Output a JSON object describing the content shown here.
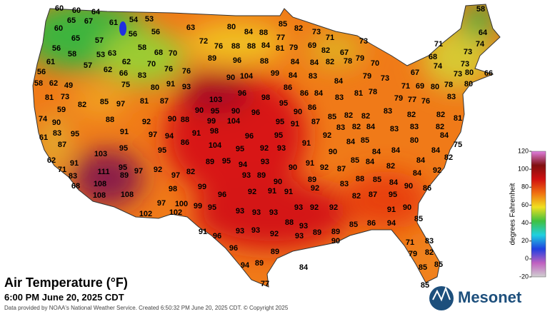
{
  "title": "Air Temperature (°F)",
  "subtitle": "6:00 PM June 20, 2025 CDT",
  "credit": "Data provided by NOAA's National Weather Service. Created 6:50:32 PM June 20, 2025 CDT. © Copyright 2025",
  "logo_text": "Mesonet",
  "colorbar": {
    "label": "degrees Fahrenheit",
    "lim": [
      -20,
      120
    ],
    "ticks": [
      -20,
      0,
      20,
      40,
      60,
      80,
      100,
      120
    ],
    "colors": [
      "#d0d0d0",
      "#c060c0",
      "#2040e0",
      "#20d0e0",
      "#40c040",
      "#f0e020",
      "#f07010",
      "#d01010",
      "#801010",
      "#e080e0"
    ]
  },
  "station_values": [
    60,
    60,
    64,
    58,
    65,
    67,
    61,
    54,
    53,
    60,
    56,
    56,
    63,
    80,
    84,
    88,
    85,
    82,
    73,
    77,
    71,
    73,
    64,
    74,
    71,
    65,
    57,
    58,
    72,
    76,
    88,
    88,
    84,
    81,
    79,
    69,
    82,
    67,
    73,
    68,
    58,
    56,
    53,
    63,
    68,
    70,
    61,
    57,
    62,
    70,
    89,
    96,
    88,
    84,
    84,
    82,
    78,
    79,
    70,
    74,
    73,
    80,
    66,
    56,
    62,
    66,
    76,
    76,
    67,
    73,
    58,
    62,
    49,
    83,
    90,
    104,
    99,
    84,
    83,
    84,
    79,
    73,
    80,
    78,
    75,
    80,
    91,
    93,
    86,
    71,
    69,
    80,
    83,
    81,
    73,
    85,
    97,
    103,
    96,
    98,
    86,
    84,
    81,
    78,
    79,
    77,
    76,
    59,
    82,
    81,
    87,
    95,
    83,
    90,
    95,
    90,
    90,
    86,
    83,
    82,
    82,
    81,
    74,
    88,
    92,
    90,
    88,
    99,
    104,
    96,
    95,
    87,
    85,
    82,
    82,
    83,
    82,
    90,
    91,
    97,
    94,
    91,
    98,
    96,
    95,
    91,
    92,
    83,
    82,
    84,
    83,
    84,
    61,
    83,
    95,
    87,
    86,
    104,
    95,
    92,
    93,
    91,
    84,
    85,
    80,
    95,
    95,
    84,
    84,
    84,
    75,
    82,
    62,
    103,
    89,
    95,
    94,
    93,
    90,
    84,
    71,
    83,
    91,
    95,
    97,
    92,
    82,
    93,
    89,
    90,
    91,
    92,
    87,
    85,
    84,
    82,
    84,
    92,
    111,
    89,
    97,
    89,
    88,
    85,
    84,
    90,
    86,
    68,
    108,
    99,
    90,
    92,
    91,
    91,
    92,
    83,
    98,
    108,
    108,
    96,
    82,
    87,
    95,
    97,
    100,
    99,
    95,
    93,
    93,
    93,
    93,
    92,
    92,
    91,
    90,
    102,
    102,
    88,
    93,
    85,
    86,
    94,
    85,
    91,
    96,
    93,
    93,
    92,
    93,
    89,
    89,
    90,
    71,
    83,
    96,
    89,
    79,
    82,
    94,
    89,
    84,
    85,
    85,
    77,
    85
  ]
}
